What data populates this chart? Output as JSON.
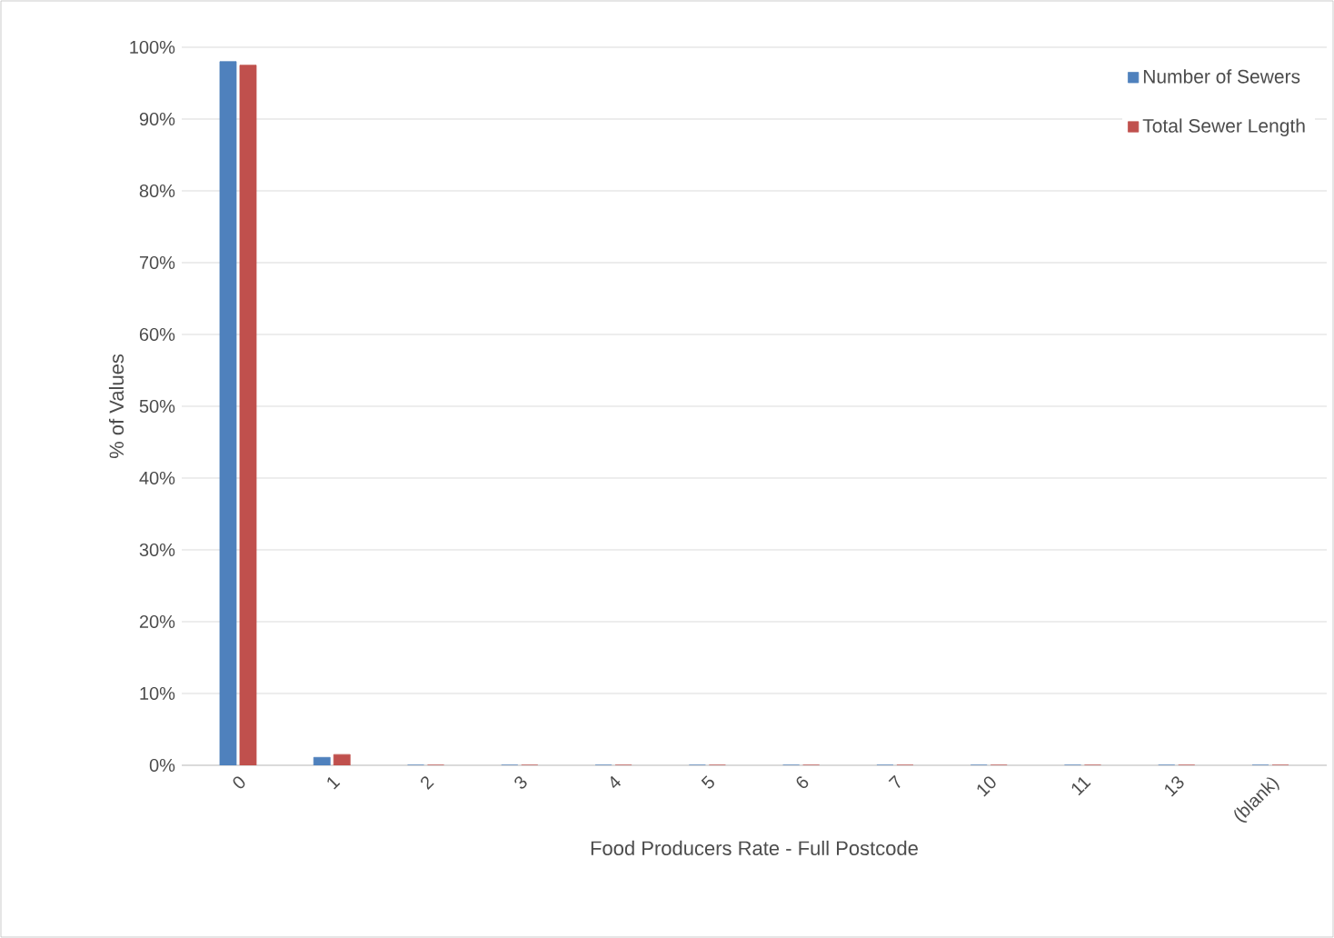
{
  "chart_data": {
    "type": "bar",
    "xlabel": "Food Producers Rate - Full Postcode",
    "ylabel": "% of Values",
    "categories": [
      "0",
      "1",
      "2",
      "3",
      "4",
      "5",
      "6",
      "7",
      "10",
      "11",
      "13",
      "(blank)"
    ],
    "series": [
      {
        "name": "Number of Sewers",
        "color": "#4f81bd",
        "values": [
          98,
          1.1,
          0,
          0,
          0,
          0,
          0,
          0,
          0,
          0,
          0,
          0
        ]
      },
      {
        "name": "Total Sewer Length",
        "color": "#c0504d",
        "values": [
          97.5,
          1.5,
          0,
          0,
          0,
          0,
          0,
          0,
          0,
          0,
          0,
          0
        ]
      }
    ],
    "ylim": [
      0,
      100
    ],
    "yticks": [
      {
        "value": 0,
        "label": "0%"
      },
      {
        "value": 10,
        "label": "10%"
      },
      {
        "value": 20,
        "label": "20%"
      },
      {
        "value": 30,
        "label": "30%"
      },
      {
        "value": 40,
        "label": "40%"
      },
      {
        "value": 50,
        "label": "50%"
      },
      {
        "value": 60,
        "label": "60%"
      },
      {
        "value": 70,
        "label": "70%"
      },
      {
        "value": 80,
        "label": "80%"
      },
      {
        "value": 90,
        "label": "90%"
      },
      {
        "value": 100,
        "label": "100%"
      }
    ],
    "grid": "y",
    "legend": "top right"
  }
}
